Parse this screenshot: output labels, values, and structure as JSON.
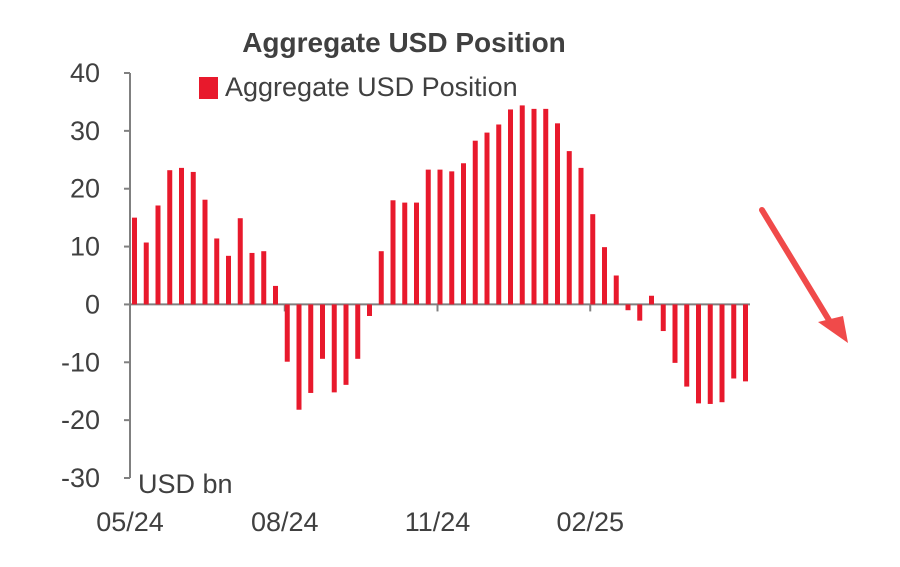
{
  "chart_data": {
    "type": "bar",
    "title": "Aggregate USD Position",
    "unit_label": "USD bn",
    "ylim": [
      -30,
      40
    ],
    "yticks": [
      40,
      30,
      20,
      10,
      0,
      -10,
      -20,
      -30
    ],
    "ytick_labels": [
      "40",
      "30",
      "20",
      "10",
      "0",
      "-10",
      "-20",
      "-30"
    ],
    "xtick_labels": [
      "05/24",
      "08/24",
      "11/24",
      "02/25"
    ],
    "xtick_bar_index": [
      0,
      13,
      26,
      39
    ],
    "grid": false,
    "legend": "top",
    "series": [
      {
        "name": "Aggregate USD Position",
        "color": "#e8192c",
        "values": [
          15,
          10.7,
          17.1,
          23.2,
          23.6,
          22.9,
          18.1,
          11.4,
          8.4,
          14.9,
          8.9,
          9.2,
          3.2,
          -9.9,
          -18.2,
          -15.3,
          -9.4,
          -15.2,
          -13.9,
          -9.4,
          -2.0,
          9.2,
          18.0,
          17.6,
          17.6,
          23.3,
          23.3,
          23.0,
          24.4,
          28.3,
          29.7,
          31.1,
          33.7,
          34.4,
          33.8,
          33.8,
          31.3,
          26.5,
          23.6,
          15.6,
          9.9,
          5.0,
          -1.0,
          -2.8,
          1.5,
          -4.6,
          -10.1,
          -14.2,
          -17.1,
          -17.2,
          -16.9,
          -12.8,
          -13.3
        ]
      }
    ]
  },
  "annotation": {
    "arrow_color": "#f04a4a"
  }
}
